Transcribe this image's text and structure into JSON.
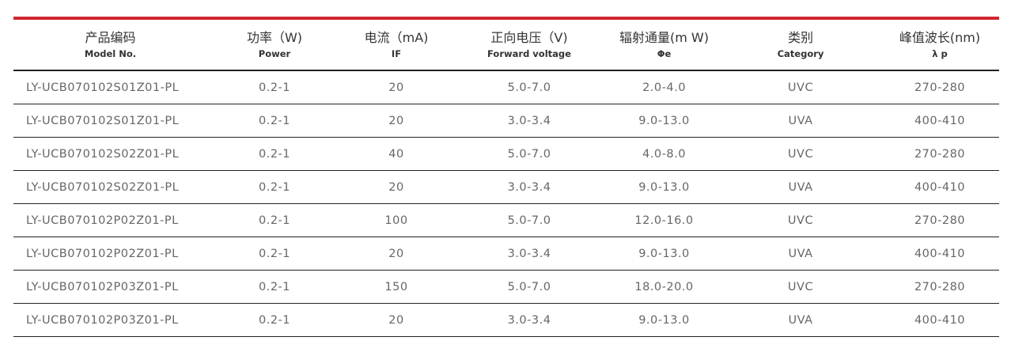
{
  "colors": {
    "accent": "#d0262d"
  },
  "headers": [
    {
      "cn": "产品编码",
      "en": "Model No."
    },
    {
      "cn": "功率（W)",
      "en": "Power"
    },
    {
      "cn": "电流（mA)",
      "en": "IF"
    },
    {
      "cn": "正向电压（V)",
      "en": "Forward voltage"
    },
    {
      "cn": "辐射通量(m W)",
      "en": "Φe"
    },
    {
      "cn": "类别",
      "en": "Category"
    },
    {
      "cn": "峰值波长(nm)",
      "en": "λ p"
    }
  ],
  "rows": [
    [
      "LY-UCB070102S01Z01-PL",
      "0.2-1",
      "20",
      "5.0-7.0",
      "2.0-4.0",
      "UVC",
      "270-280"
    ],
    [
      "LY-UCB070102S01Z01-PL",
      "0.2-1",
      "20",
      "3.0-3.4",
      "9.0-13.0",
      "UVA",
      "400-410"
    ],
    [
      "LY-UCB070102S02Z01-PL",
      "0.2-1",
      "40",
      "5.0-7.0",
      "4.0-8.0",
      "UVC",
      "270-280"
    ],
    [
      "LY-UCB070102S02Z01-PL",
      "0.2-1",
      "20",
      "3.0-3.4",
      "9.0-13.0",
      "UVA",
      "400-410"
    ],
    [
      "LY-UCB070102P02Z01-PL",
      "0.2-1",
      "100",
      "5.0-7.0",
      "12.0-16.0",
      "UVC",
      "270-280"
    ],
    [
      "LY-UCB070102P02Z01-PL",
      "0.2-1",
      "20",
      "3.0-3.4",
      "9.0-13.0",
      "UVA",
      "400-410"
    ],
    [
      "LY-UCB070102P03Z01-PL",
      "0.2-1",
      "150",
      "5.0-7.0",
      "18.0-20.0",
      "UVC",
      "270-280"
    ],
    [
      "LY-UCB070102P03Z01-PL",
      "0.2-1",
      "20",
      "3.0-3.4",
      "9.0-13.0",
      "UVA",
      "400-410"
    ]
  ]
}
